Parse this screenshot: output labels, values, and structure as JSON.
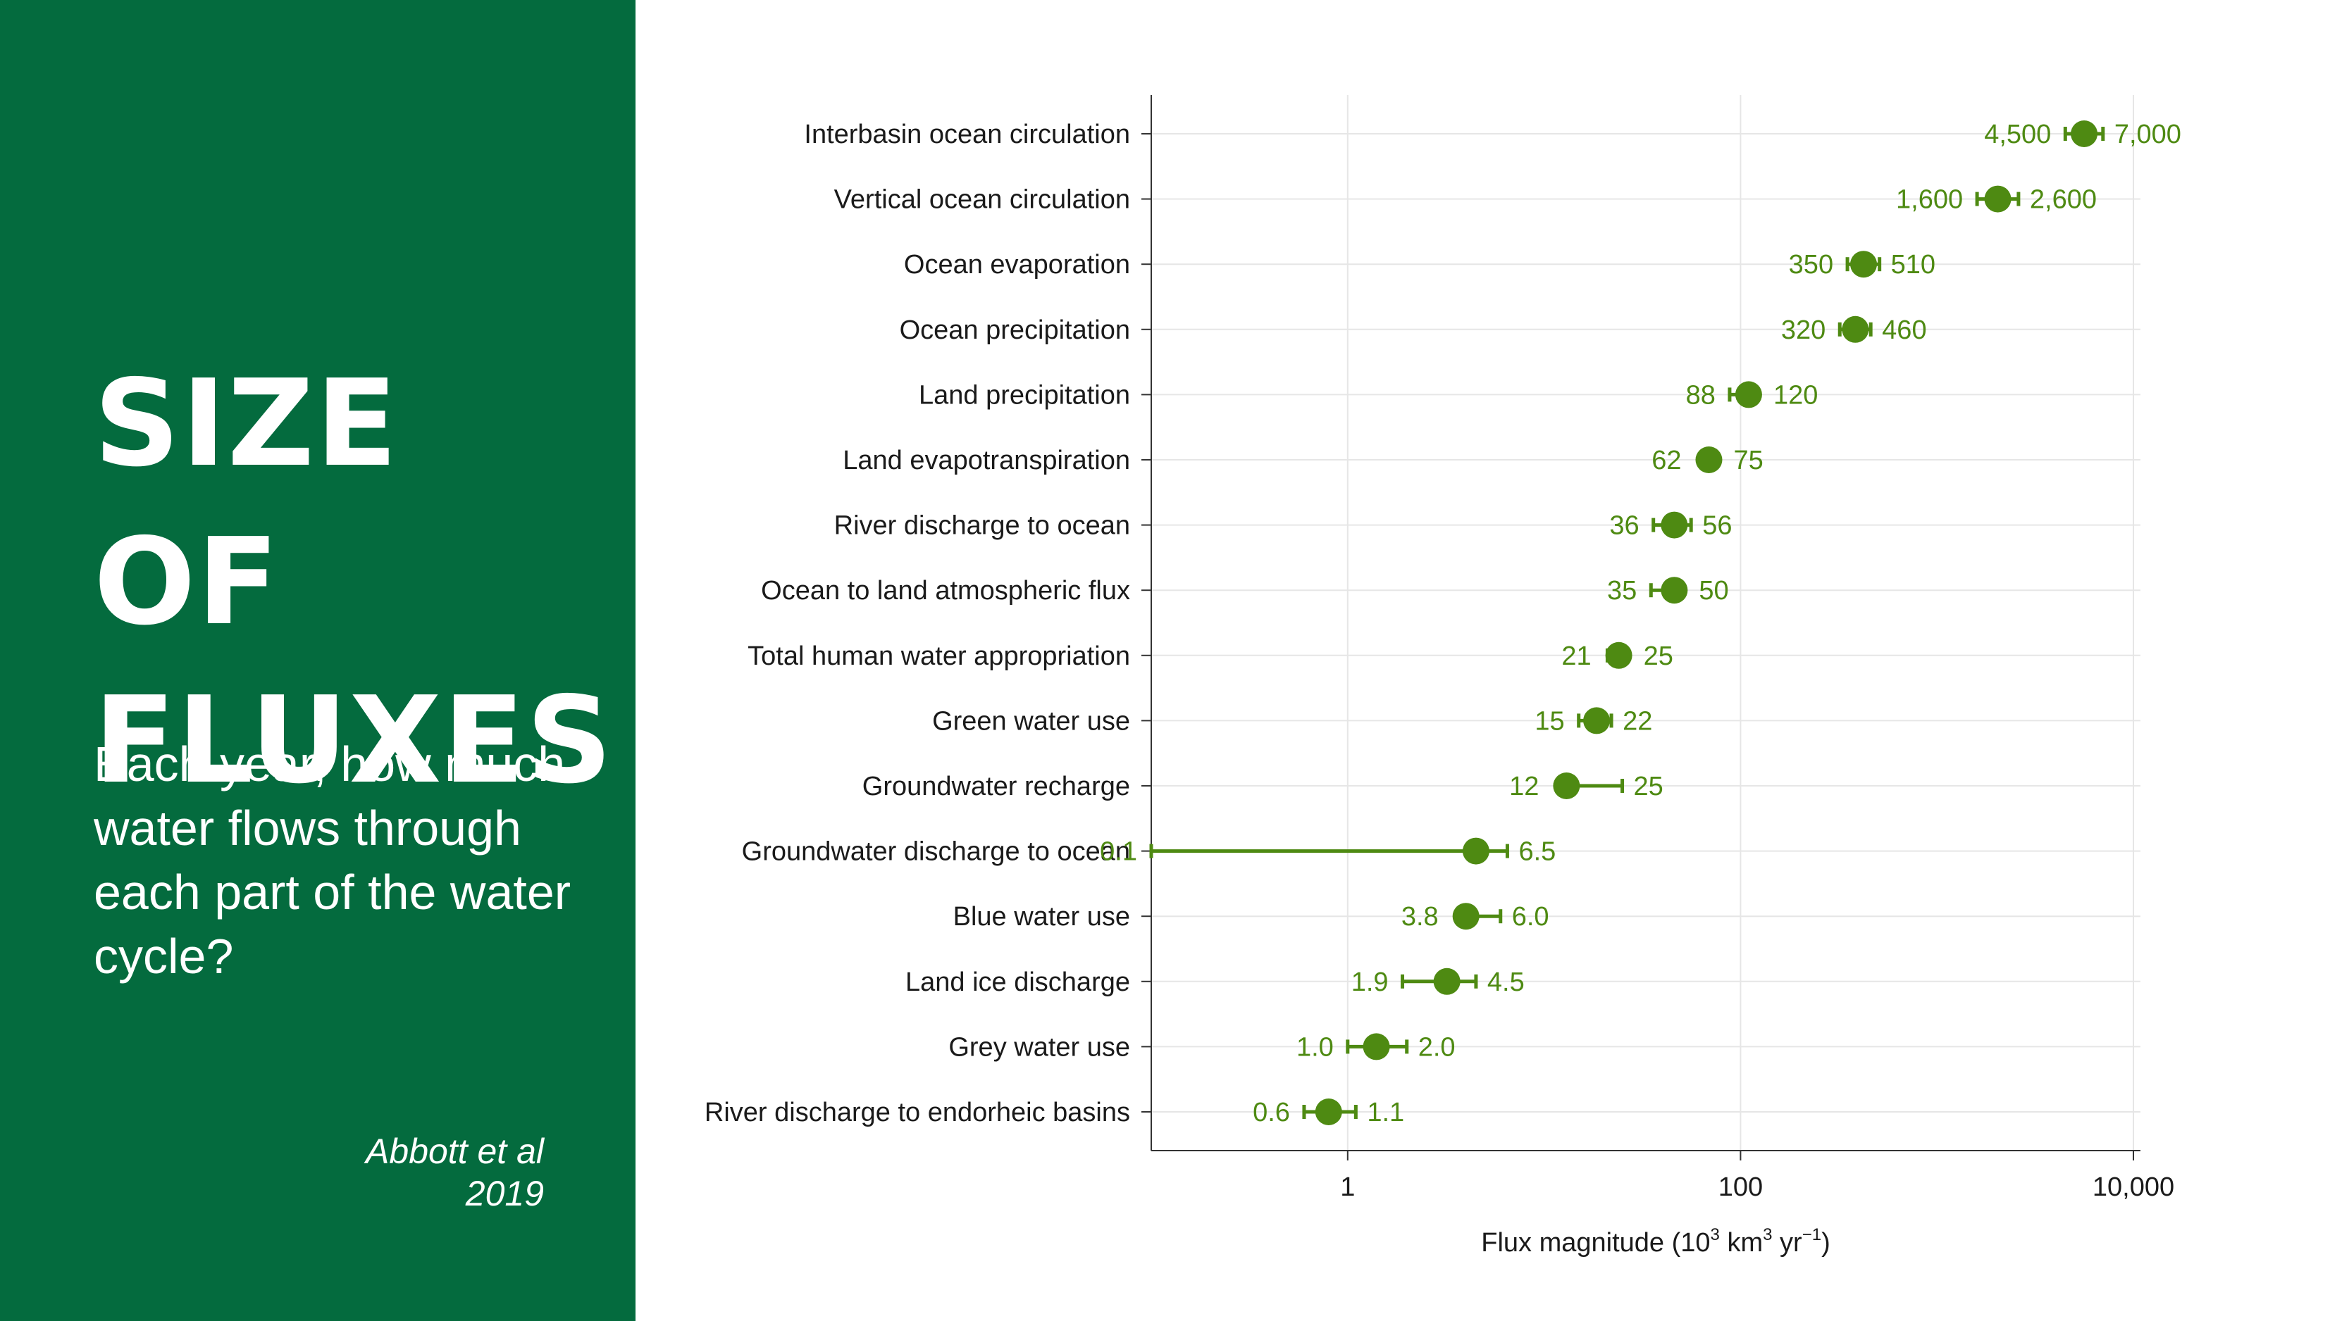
{
  "slide": {
    "title_line1": "SIZE OF",
    "title_line2": "FLUXES",
    "subtitle": "Each year, how much water flows through each part of the water cycle?",
    "citation": "Abbott et al 2019"
  },
  "colors": {
    "sidebar": "#046b3e",
    "accent": "#4e8a12",
    "text": "#ffffff"
  },
  "chart_data": {
    "type": "scatter",
    "scale": "log",
    "xlabel_main": "Flux magnitude (10",
    "xlabel_sup1": "3",
    "xlabel_mid": " km",
    "xlabel_sup2": "3",
    "xlabel_yr": " yr",
    "xlabel_sup3": "−1",
    "xlabel_end": ")",
    "xlim": [
      0.1,
      10000
    ],
    "xticks": [
      {
        "value": 1,
        "label": "1"
      },
      {
        "value": 100,
        "label": "100"
      },
      {
        "value": 10000,
        "label": "10,000"
      }
    ],
    "grid": true,
    "series": [
      {
        "category": "Interbasin ocean circulation",
        "low": 4500,
        "high": 7000,
        "low_label": "4,500",
        "high_label": "7,000",
        "mid": 5612
      },
      {
        "category": "Vertical ocean circulation",
        "low": 1600,
        "high": 2600,
        "low_label": "1,600",
        "high_label": "2,600",
        "mid": 2040
      },
      {
        "category": "Ocean evaporation",
        "low": 350,
        "high": 510,
        "low_label": "350",
        "high_label": "510",
        "mid": 423
      },
      {
        "category": "Ocean precipitation",
        "low": 320,
        "high": 460,
        "low_label": "320",
        "high_label": "460",
        "mid": 384
      },
      {
        "category": "Land precipitation",
        "low": 88,
        "high": 120,
        "low_label": "88",
        "high_label": "120",
        "mid": 110
      },
      {
        "category": "Land evapotranspiration",
        "low": 62,
        "high": 75,
        "low_label": "62",
        "high_label": "75",
        "mid": 69
      },
      {
        "category": "River discharge to ocean",
        "low": 36,
        "high": 56,
        "low_label": "36",
        "high_label": "56",
        "mid": 46
      },
      {
        "category": "Ocean to land atmospheric flux",
        "low": 35,
        "high": 50,
        "low_label": "35",
        "high_label": "50",
        "mid": 46
      },
      {
        "category": "Total human water appropriation",
        "low": 21,
        "high": 25,
        "low_label": "21",
        "high_label": "25",
        "mid": 24
      },
      {
        "category": "Green water use",
        "low": 15,
        "high": 22,
        "low_label": "15",
        "high_label": "22",
        "mid": 18.5
      },
      {
        "category": "Groundwater recharge",
        "low": 12,
        "high": 25,
        "low_label": "12",
        "high_label": "25",
        "mid": 13
      },
      {
        "category": "Groundwater discharge to ocean",
        "low": 0.1,
        "high": 6.5,
        "low_label": "0.1",
        "high_label": "6.5",
        "mid": 4.5
      },
      {
        "category": "Blue water use",
        "low": 3.8,
        "high": 6.0,
        "low_label": "3.8",
        "high_label": "6.0",
        "mid": 4.0
      },
      {
        "category": "Land ice discharge",
        "low": 1.9,
        "high": 4.5,
        "low_label": "1.9",
        "high_label": "4.5",
        "mid": 3.2
      },
      {
        "category": "Grey water use",
        "low": 1.0,
        "high": 2.0,
        "low_label": "1.0",
        "high_label": "2.0",
        "mid": 1.4
      },
      {
        "category": "River discharge to endorheic basins",
        "low": 0.6,
        "high": 1.1,
        "low_label": "0.6",
        "high_label": "1.1",
        "mid": 0.8
      }
    ]
  }
}
